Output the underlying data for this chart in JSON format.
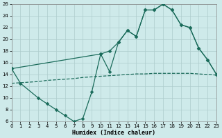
{
  "xlabel": "Humidex (Indice chaleur)",
  "bg_color": "#ceeaea",
  "grid_color": "#aecccc",
  "line_color": "#1a6b5a",
  "xlim": [
    0,
    23
  ],
  "ylim": [
    6,
    26
  ],
  "xticks": [
    0,
    1,
    2,
    3,
    4,
    5,
    6,
    7,
    8,
    9,
    10,
    11,
    12,
    13,
    14,
    15,
    16,
    17,
    18,
    19,
    20,
    21,
    22,
    23
  ],
  "yticks": [
    6,
    8,
    10,
    12,
    14,
    16,
    18,
    20,
    22,
    24,
    26
  ],
  "line1_x": [
    0,
    1,
    3,
    4,
    5,
    6,
    7,
    8,
    9,
    10,
    11,
    12,
    13,
    14,
    15,
    16,
    17,
    18,
    19,
    20,
    21,
    22,
    23
  ],
  "line1_y": [
    15,
    12.5,
    10,
    9,
    8,
    7,
    6,
    6.5,
    11,
    17.5,
    14.5,
    19.5,
    21.5,
    20.5,
    25,
    25,
    26,
    25,
    22.5,
    22,
    18.5,
    16.5,
    14
  ],
  "line2_x": [
    0,
    1,
    2,
    3,
    4,
    5,
    6,
    7,
    8,
    9,
    10,
    11,
    12,
    13,
    14,
    15,
    16,
    17,
    18,
    19,
    20,
    21,
    22,
    23
  ],
  "line2_y": [
    12.5,
    12.6,
    12.7,
    12.8,
    13.0,
    13.1,
    13.2,
    13.3,
    13.5,
    13.6,
    13.7,
    13.8,
    13.9,
    14.0,
    14.1,
    14.1,
    14.2,
    14.2,
    14.2,
    14.2,
    14.2,
    14.1,
    14.0,
    13.9
  ],
  "line3_x": [
    0,
    10,
    11,
    12,
    13,
    14,
    15,
    16,
    17,
    18,
    19,
    20,
    21,
    22,
    23
  ],
  "line3_y": [
    15,
    17.5,
    18,
    19.5,
    21.5,
    20.5,
    25,
    25,
    26,
    25,
    22.5,
    22,
    18.5,
    16.5,
    14
  ]
}
